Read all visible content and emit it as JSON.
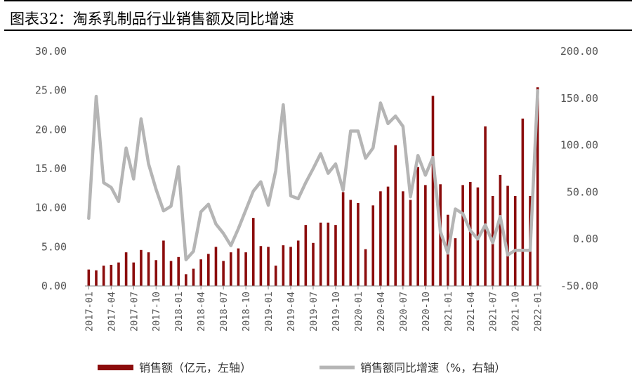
{
  "header": {
    "title": "图表32：淘系乳制品行业销售额及同比增速"
  },
  "colors": {
    "bar": "#8b0c0c",
    "line": "#b5b5b5",
    "axis": "#888888"
  },
  "chart_data": {
    "type": "bar",
    "title": "图表32：淘系乳制品行业销售额及同比增速",
    "categories": [
      "2017-01",
      "2017-02",
      "2017-03",
      "2017-04",
      "2017-05",
      "2017-06",
      "2017-07",
      "2017-08",
      "2017-09",
      "2017-10",
      "2017-11",
      "2017-12",
      "2018-01",
      "2018-02",
      "2018-03",
      "2018-04",
      "2018-05",
      "2018-06",
      "2018-07",
      "2018-08",
      "2018-09",
      "2018-10",
      "2018-11",
      "2018-12",
      "2019-01",
      "2019-02",
      "2019-03",
      "2019-04",
      "2019-05",
      "2019-06",
      "2019-07",
      "2019-08",
      "2019-09",
      "2019-10",
      "2019-11",
      "2019-12",
      "2020-01",
      "2020-02",
      "2020-03",
      "2020-04",
      "2020-05",
      "2020-06",
      "2020-07",
      "2020-08",
      "2020-09",
      "2020-10",
      "2020-11",
      "2020-12",
      "2021-01",
      "2021-02",
      "2021-03",
      "2021-04",
      "2021-05",
      "2021-06",
      "2021-07",
      "2021-08",
      "2021-09",
      "2021-10",
      "2021-11",
      "2021-12",
      "2022-01"
    ],
    "xtick_labels": [
      "2017-01",
      "2017-04",
      "2017-07",
      "2017-10",
      "2018-01",
      "2018-04",
      "2018-07",
      "2018-10",
      "2019-01",
      "2019-04",
      "2019-07",
      "2019-10",
      "2020-01",
      "2020-04",
      "2020-07",
      "2020-10",
      "2021-01",
      "2021-04",
      "2021-07",
      "2021-10",
      "2022-01"
    ],
    "series": [
      {
        "name": "销售额（亿元，左轴）",
        "type": "bar",
        "axis": "left",
        "values": [
          2.1,
          2.0,
          2.6,
          2.7,
          3.0,
          4.3,
          3.0,
          4.6,
          4.3,
          3.3,
          5.8,
          3.2,
          3.7,
          1.5,
          2.2,
          3.4,
          4.1,
          5.0,
          3.2,
          4.3,
          4.8,
          4.3,
          8.7,
          5.1,
          5.0,
          2.6,
          5.2,
          5.0,
          5.8,
          7.8,
          5.5,
          8.1,
          8.1,
          7.8,
          12.0,
          11.0,
          10.6,
          4.7,
          10.3,
          12.1,
          12.7,
          18.0,
          12.1,
          11.0,
          15.2,
          12.9,
          24.3,
          13.0,
          9.1,
          6.1,
          12.9,
          13.3,
          12.6,
          20.4,
          11.5,
          14.2,
          12.8,
          11.5,
          21.4,
          11.5,
          25.4
        ]
      },
      {
        "name": "销售额同比增速（%，右轴）",
        "type": "line",
        "axis": "right",
        "values": [
          22,
          152,
          60,
          55,
          40,
          97,
          64,
          128,
          80,
          53,
          30,
          35,
          77,
          -22,
          -13,
          29,
          37,
          16,
          6,
          -7,
          11,
          31,
          51,
          61,
          36,
          73,
          143,
          46,
          43,
          60,
          75,
          91,
          70,
          80,
          52,
          115,
          115,
          86,
          97,
          145,
          123,
          131,
          120,
          45,
          89,
          68,
          87,
          8,
          -15,
          32,
          27,
          9,
          0,
          15,
          -4,
          24,
          -17,
          -12,
          -12,
          -12,
          158
        ]
      }
    ],
    "ylim_left": [
      0,
      30
    ],
    "ylim_right": [
      -50,
      200
    ],
    "yticks_left": [
      "0.00",
      "5.00",
      "10.00",
      "15.00",
      "20.00",
      "25.00",
      "30.00"
    ],
    "yticks_right": [
      "-50.00",
      "0.00",
      "50.00",
      "100.00",
      "150.00",
      "200.00"
    ],
    "legend_position": "bottom",
    "xlabel": "",
    "ylabel": ""
  }
}
